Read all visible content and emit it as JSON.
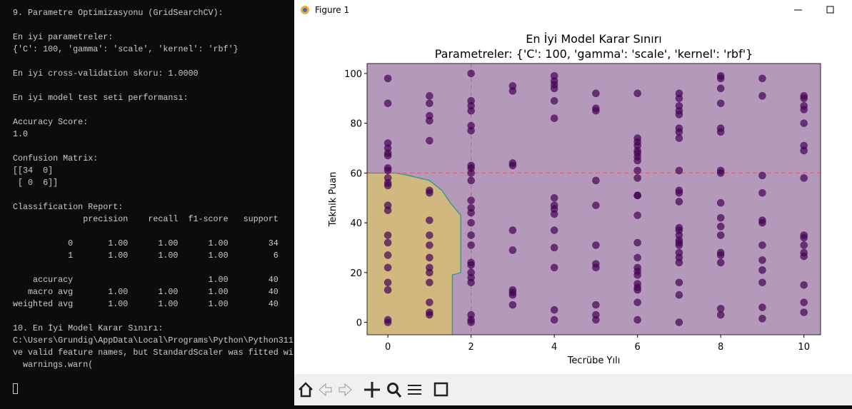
{
  "terminal": {
    "blocks": [
      [
        "9. Parametre Optimizasyonu (GridSearchCV):"
      ],
      [
        "En iyi parametreler:",
        "{'C': 100, 'gamma': 'scale', 'kernel': 'rbf'}"
      ],
      [
        "En iyi cross-validation skoru: 1.0000"
      ],
      [
        "En iyi model test seti performansı:"
      ],
      [
        "Accuracy Score:",
        "1.0"
      ],
      [
        "Confusion Matrix:",
        "[[34  0]",
        " [ 0  6]]"
      ],
      [
        "Classification Report:",
        "              precision    recall  f1-score   support"
      ],
      [
        "           0       1.00      1.00      1.00        34",
        "           1       1.00      1.00      1.00         6"
      ],
      [
        "    accuracy                           1.00        40",
        "   macro avg       1.00      1.00      1.00        40",
        "weighted avg       1.00      1.00      1.00        40"
      ],
      [
        "10. En İyi Model Karar Sınırı:",
        "C:\\Users\\Grundig\\AppData\\Local\\Programs\\Python\\Python311",
        "ve valid feature names, but StandardScaler was fitted wit",
        "  warnings.warn("
      ]
    ]
  },
  "window": {
    "title": "Figure 1"
  },
  "chart_data": {
    "type": "scatter",
    "title": "En İyi Model Karar Sınırı",
    "subtitle": "Parametreler: {'C': 100, 'gamma': 'scale', 'kernel': 'rbf'}",
    "x_label": "Tecrübe Yılı",
    "y_label": "Teknik Puan",
    "xlim": [
      -0.5,
      10.4
    ],
    "ylim": [
      -5,
      104
    ],
    "xticks": [
      0,
      2,
      4,
      6,
      8,
      10
    ],
    "yticks": [
      0,
      20,
      40,
      60,
      80,
      100
    ],
    "color": "#440154",
    "region_colors": {
      "positive": "#fde725",
      "negative": "#440154"
    },
    "reference_lines": {
      "x": 2,
      "y": 60,
      "color": "#e05a6e"
    },
    "decision_boundary": {
      "x": [
        -0.5,
        0.2,
        0.5,
        1.0,
        1.3,
        1.5,
        1.75,
        1.75,
        1.55,
        1.55
      ],
      "y": [
        60,
        60,
        59,
        57,
        53,
        48,
        43,
        20,
        19,
        -5
      ]
    },
    "x": [
      0,
      0,
      0,
      0,
      0,
      0,
      0,
      0,
      0,
      0,
      0,
      0,
      0,
      0,
      0,
      0,
      0,
      0,
      0,
      0,
      0,
      1,
      1,
      1,
      1,
      1,
      1,
      1,
      1,
      1,
      1,
      1,
      1,
      1,
      1,
      1,
      1,
      1,
      2,
      2,
      2,
      2,
      2,
      2,
      2,
      2,
      2,
      2,
      2,
      2,
      2,
      2,
      2,
      2,
      2,
      2,
      2,
      2,
      2,
      2,
      2,
      2,
      3,
      3,
      3,
      3,
      3,
      3,
      3,
      3,
      3,
      3,
      4,
      4,
      4,
      4,
      4,
      4,
      4,
      4,
      4,
      4,
      4,
      4,
      4,
      4,
      4,
      5,
      5,
      5,
      5,
      5,
      5,
      5,
      5,
      5,
      5,
      5,
      6,
      6,
      6,
      6,
      6,
      6,
      6,
      6,
      6,
      6,
      6,
      6,
      6,
      6,
      6,
      6,
      6,
      6,
      6,
      6,
      6,
      6,
      6,
      7,
      7,
      7,
      7,
      7,
      7,
      7,
      7,
      7,
      7,
      7,
      7,
      7,
      7,
      7,
      7,
      7,
      7,
      7,
      7,
      7,
      7,
      7,
      7,
      8,
      8,
      8,
      8,
      8,
      8,
      8,
      8,
      8,
      8,
      8,
      8,
      8,
      8,
      8,
      8,
      8,
      9,
      9,
      9,
      9,
      9,
      9,
      9,
      9,
      9,
      9,
      9,
      9,
      10,
      10,
      10,
      10,
      10,
      10,
      10,
      10,
      10,
      10,
      10,
      10,
      10,
      10,
      10,
      10
    ],
    "values": [
      98,
      88,
      72,
      70,
      68,
      67,
      62,
      61,
      58,
      56,
      55,
      47,
      45,
      35,
      32,
      27,
      22,
      16,
      13,
      1,
      0,
      91,
      88,
      83,
      81,
      73,
      53,
      52,
      41,
      35,
      31,
      26,
      22,
      20,
      16,
      8,
      4,
      3,
      100,
      89,
      87,
      85,
      79,
      77,
      63,
      62,
      60,
      57,
      49,
      46,
      44,
      40,
      35,
      31,
      24,
      23,
      20,
      18,
      16,
      3,
      1,
      0,
      95,
      93,
      64,
      63,
      37,
      29,
      13,
      12,
      11,
      7,
      99,
      97,
      95.5,
      94,
      89,
      82,
      50,
      47,
      45.5,
      43.5,
      37,
      30,
      22,
      5,
      1,
      92,
      86,
      85,
      57,
      47,
      31,
      23.5,
      22,
      7,
      3,
      1,
      92,
      74,
      72.5,
      71,
      69,
      68,
      66.5,
      65,
      61,
      58,
      51,
      51,
      43,
      32,
      26,
      22,
      20.5,
      19,
      15.5,
      14,
      13,
      8,
      1,
      92,
      90,
      87,
      85,
      83.5,
      78,
      76.5,
      74,
      61,
      53,
      52,
      48.5,
      38,
      37,
      35,
      33,
      32,
      31,
      28,
      26,
      24,
      16,
      11,
      0,
      99,
      98,
      94,
      88,
      78,
      76.5,
      61,
      60,
      48,
      42,
      38.5,
      35,
      28,
      27,
      24,
      5.5,
      3,
      98,
      91,
      59,
      52,
      41,
      40,
      31,
      25,
      21,
      16,
      6,
      1.5,
      91,
      90,
      87,
      85.5,
      80,
      71,
      69,
      58,
      35,
      34,
      31,
      28,
      26.5,
      15,
      8,
      4
    ]
  }
}
